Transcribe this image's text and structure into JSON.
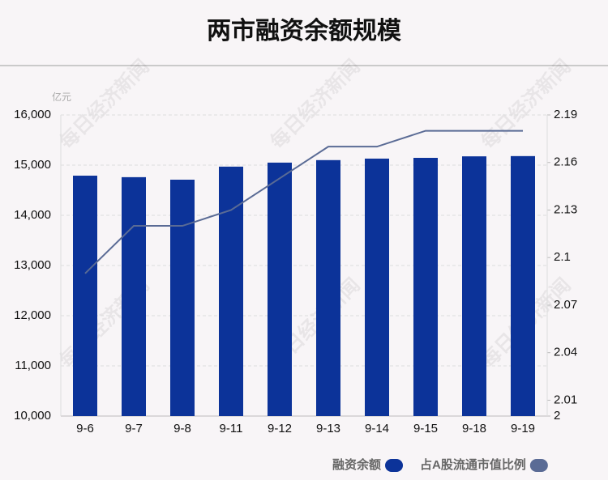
{
  "chart_data": {
    "type": "bar_line",
    "title": "两市融资余额规模",
    "y_label": "亿元",
    "watermark": "每日经济新闻",
    "categories": [
      "9-6",
      "9-7",
      "9-8",
      "9-11",
      "9-12",
      "9-13",
      "9-14",
      "9-15",
      "9-18",
      "9-19"
    ],
    "series": [
      {
        "name": "融资余额",
        "color": "#0c3399",
        "type": "bar",
        "values": [
          14790,
          14760,
          14710,
          14970,
          15050,
          15100,
          15130,
          15145,
          15175,
          15180
        ]
      },
      {
        "name": "占A股流通市值比例",
        "color": "#5a6b95",
        "type": "line",
        "axis": "y2",
        "values": [
          2.09,
          2.12,
          2.12,
          2.13,
          2.15,
          2.17,
          2.17,
          2.18,
          2.18,
          2.18
        ]
      }
    ],
    "ylim": [
      10000,
      16000
    ],
    "yticks": [
      {
        "value": 10000,
        "label": "10,000"
      },
      {
        "value": 11000,
        "label": "11,000"
      },
      {
        "value": 12000,
        "label": "12,000"
      },
      {
        "value": 13000,
        "label": "13,000"
      },
      {
        "value": 14000,
        "label": "14,000"
      },
      {
        "value": 15000,
        "label": "15,000"
      },
      {
        "value": 16000,
        "label": "16,000"
      }
    ],
    "y2lim": [
      2,
      2.19
    ],
    "y2ticks": [
      2,
      2.01,
      2.04,
      2.07,
      2.1,
      2.13,
      2.16,
      2.19
    ],
    "grid": true
  }
}
